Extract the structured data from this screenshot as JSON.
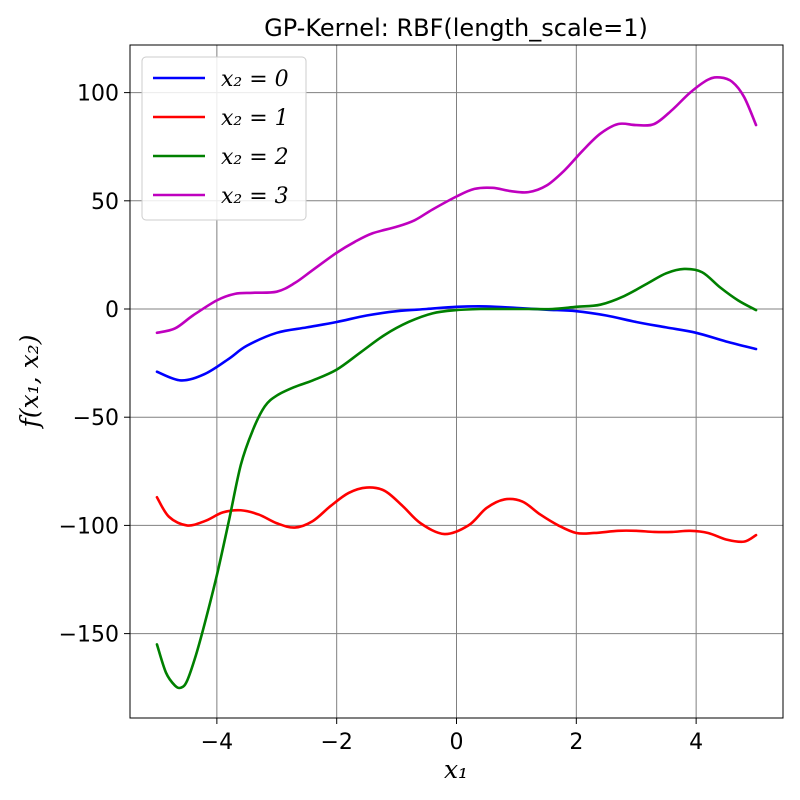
{
  "chart_data": {
    "type": "line",
    "title": "GP-Kernel: RBF(length_scale=1)",
    "xlabel": "x₁",
    "ylabel": "f(x₁, x₂)",
    "xlim": [
      -5.45,
      5.45
    ],
    "ylim": [
      -189,
      122
    ],
    "xticks": [
      -4,
      -2,
      0,
      2,
      4
    ],
    "xtick_labels": [
      "−4",
      "−2",
      "0",
      "2",
      "4"
    ],
    "yticks": [
      -150,
      -100,
      -50,
      0,
      50,
      100
    ],
    "ytick_labels": [
      "−150",
      "−100",
      "−50",
      "0",
      "50",
      "100"
    ],
    "grid": true,
    "legend_position": "top-left",
    "series": [
      {
        "name": "x₂ = 0",
        "color": "#0000ff",
        "x": [
          -5.0,
          -4.6,
          -4.2,
          -3.8,
          -3.5,
          -3.0,
          -2.5,
          -2.0,
          -1.5,
          -1.0,
          -0.5,
          0.0,
          0.5,
          1.0,
          1.5,
          2.0,
          2.5,
          3.0,
          3.5,
          4.0,
          4.5,
          5.0
        ],
        "y": [
          -29,
          -33,
          -30,
          -23,
          -17,
          -11,
          -8.5,
          -6,
          -3,
          -1,
          0,
          1,
          1.2,
          0.5,
          -0.3,
          -1,
          -3,
          -6,
          -8.5,
          -11,
          -15,
          -18.5
        ]
      },
      {
        "name": "x₂ = 1",
        "color": "#ff0000",
        "x": [
          -5.0,
          -4.8,
          -4.5,
          -4.2,
          -3.9,
          -3.6,
          -3.3,
          -3.0,
          -2.7,
          -2.4,
          -2.1,
          -1.8,
          -1.5,
          -1.2,
          -0.9,
          -0.6,
          -0.2,
          0.2,
          0.5,
          0.8,
          1.1,
          1.4,
          1.7,
          2.0,
          2.3,
          2.7,
          3.0,
          3.3,
          3.6,
          3.9,
          4.2,
          4.5,
          4.8,
          5.0
        ],
        "y": [
          -87,
          -96,
          -100,
          -98,
          -94,
          -93,
          -95,
          -99,
          -101,
          -98,
          -91,
          -85,
          -82.5,
          -84,
          -91,
          -99,
          -104,
          -100,
          -92,
          -88,
          -89,
          -95,
          -100,
          -103.5,
          -103.5,
          -102.5,
          -102.5,
          -103,
          -103,
          -102.5,
          -103.5,
          -106.5,
          -107.5,
          -104.5
        ]
      },
      {
        "name": "x₂ = 2",
        "color": "#008000",
        "x": [
          -5.0,
          -4.85,
          -4.7,
          -4.6,
          -4.5,
          -4.35,
          -4.2,
          -4.0,
          -3.8,
          -3.6,
          -3.4,
          -3.2,
          -3.0,
          -2.7,
          -2.4,
          -2.0,
          -1.6,
          -1.2,
          -0.8,
          -0.4,
          0.0,
          0.4,
          0.8,
          1.2,
          1.6,
          2.0,
          2.4,
          2.8,
          3.2,
          3.5,
          3.8,
          4.1,
          4.4,
          4.7,
          5.0
        ],
        "y": [
          -155,
          -168,
          -174,
          -175,
          -172,
          -160,
          -145,
          -123,
          -98,
          -72,
          -56,
          -45,
          -40,
          -36,
          -33,
          -28,
          -20,
          -12,
          -6,
          -2,
          -0.5,
          0,
          0,
          0,
          0,
          1,
          2,
          6,
          12,
          16.5,
          18.5,
          17,
          10,
          4,
          -0.5
        ]
      },
      {
        "name": "x₂ = 3",
        "color": "#bf00bf",
        "x": [
          -5.0,
          -4.7,
          -4.4,
          -4.0,
          -3.7,
          -3.4,
          -3.0,
          -2.7,
          -2.4,
          -2.0,
          -1.7,
          -1.4,
          -1.0,
          -0.7,
          -0.4,
          0.0,
          0.3,
          0.6,
          0.9,
          1.2,
          1.5,
          1.8,
          2.1,
          2.4,
          2.7,
          3.0,
          3.3,
          3.6,
          3.9,
          4.2,
          4.4,
          4.6,
          4.8,
          5.0
        ],
        "y": [
          -11,
          -9,
          -3,
          4,
          7,
          7.5,
          8,
          12,
          18,
          26,
          31,
          35,
          38,
          41,
          46,
          52,
          55.5,
          56,
          54.5,
          54,
          57,
          64,
          73,
          81,
          85.5,
          85,
          85.5,
          92,
          100,
          106,
          107,
          105,
          98,
          85
        ]
      }
    ]
  }
}
